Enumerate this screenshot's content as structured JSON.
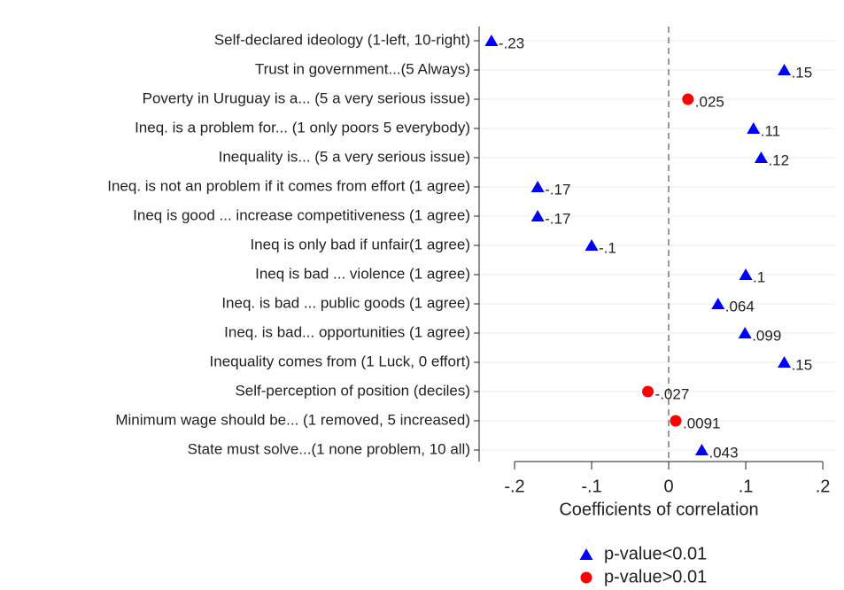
{
  "chart_data": {
    "type": "dot",
    "categories": [
      "Self-declared ideology (1-left, 10-right)",
      "Trust in  government...(5 Always)",
      "Poverty in Uruguay is a... (5 a very serious issue)",
      "Ineq. is a problem for... (1 only poors 5 everybody)",
      "Inequality is... (5 a very serious issue)",
      "Ineq. is not an problem if it comes from effort (1 agree)",
      "Ineq is good ... increase competitiveness (1 agree)",
      "Ineq is only bad if unfair(1 agree)",
      "Ineq is bad ...  violence (1 agree)",
      "Ineq. is bad ... public goods (1 agree)",
      "Ineq. is bad... opportunities (1 agree)",
      "Inequality comes from (1 Luck, 0 effort)",
      "Self-perception of position (deciles)",
      "Minimum wage should be... (1 removed, 5 increased)",
      "State must solve...(1 none problem, 10 all)"
    ],
    "series": [
      {
        "name": "p-value<0.01",
        "color": "#0000ff",
        "label_color": "#1a476f",
        "marker": "triangle",
        "values": [
          -0.23,
          0.15,
          null,
          0.11,
          0.12,
          -0.17,
          -0.17,
          -0.1,
          0.1,
          0.064,
          0.099,
          0.15,
          null,
          null,
          0.043
        ],
        "value_labels": [
          "-.23",
          ".15",
          null,
          ".11",
          ".12",
          "-.17",
          "-.17",
          "-.1",
          ".1",
          ".064",
          ".099",
          ".15",
          null,
          null,
          ".043"
        ]
      },
      {
        "name": "p-value>0.01",
        "color": "#ff0000",
        "label_color": "#90353b",
        "marker": "circle",
        "values": [
          null,
          null,
          0.025,
          null,
          null,
          null,
          null,
          null,
          null,
          null,
          null,
          null,
          -0.027,
          0.0091,
          null
        ],
        "value_labels": [
          null,
          null,
          ".025",
          null,
          null,
          null,
          null,
          null,
          null,
          null,
          null,
          null,
          "-.027",
          ".0091",
          null
        ]
      }
    ],
    "xlabel": "Coefficients of correlation",
    "xlim": [
      -0.246,
      0.216
    ],
    "xticks": [
      {
        "value": -0.2,
        "label": "-.2"
      },
      {
        "value": -0.1,
        "label": "-.1"
      },
      0,
      {
        "value": 0.1,
        "label": ".1"
      },
      {
        "value": 0.2,
        "label": ".2"
      }
    ],
    "xline": 0,
    "grid": true,
    "legend": "bottom"
  }
}
